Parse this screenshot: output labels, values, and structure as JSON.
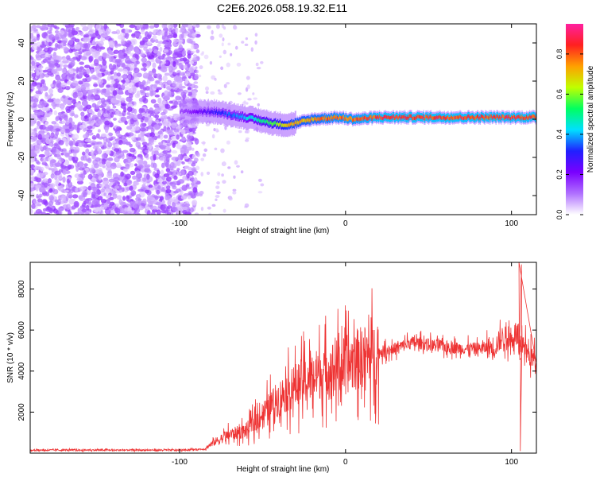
{
  "title": "C2E6.2026.058.19.32.E11",
  "chart_data": [
    {
      "type": "heatmap",
      "xlabel": "Height of straight line (km)",
      "ylabel": "Frequency (Hz)",
      "xlim": [
        -190,
        115
      ],
      "ylim": [
        -50,
        50
      ],
      "xticks": [
        -100,
        0,
        100
      ],
      "yticks": [
        -40,
        -20,
        0,
        20,
        40
      ],
      "colorbar": {
        "label": "Normalized spectral amplitude",
        "range": [
          0,
          0.95
        ],
        "ticks": [
          "0.0",
          "0.2",
          "0.4",
          "0.6",
          "0.8"
        ],
        "colormap": [
          "#ffffff",
          "#b070ff",
          "#7a00ff",
          "#2020ff",
          "#00e0ff",
          "#00ff60",
          "#c0ff00",
          "#ffa000",
          "#ff2020",
          "#ff20a0"
        ]
      },
      "ridge": {
        "noise_region_x": [
          -190,
          -95
        ],
        "ridge_x": [
          -100,
          -80,
          -60,
          -45,
          -35,
          -20,
          -5,
          5,
          20,
          50,
          80,
          105,
          115
        ],
        "ridge_freq": [
          4,
          4,
          1,
          -2,
          -3,
          0,
          1,
          0,
          1,
          1,
          1,
          1,
          1
        ],
        "ridge_amp": [
          0.15,
          0.3,
          0.45,
          0.6,
          0.75,
          0.8,
          0.85,
          0.85,
          0.9,
          0.9,
          0.9,
          0.9,
          0.9
        ]
      }
    },
    {
      "type": "line",
      "xlabel": "Height of straight line (km)",
      "ylabel": "SNR (10 * v/v)",
      "xlim": [
        -190,
        115
      ],
      "ylim": [
        0,
        9300
      ],
      "xticks": [
        -100,
        0,
        100
      ],
      "yticks": [
        2000,
        4000,
        6000,
        8000
      ],
      "color": "#ee3333",
      "envelope": {
        "x": [
          -190,
          -150,
          -100,
          -85,
          -80,
          -70,
          -60,
          -50,
          -40,
          -30,
          -20,
          -10,
          0,
          10,
          20,
          30,
          40,
          50,
          60,
          70,
          80,
          90,
          95,
          100,
          103,
          105,
          107,
          110,
          115
        ],
        "y": [
          150,
          150,
          150,
          200,
          500,
          900,
          1100,
          1900,
          2700,
          3300,
          3700,
          4100,
          4300,
          4700,
          4900,
          5100,
          5400,
          5300,
          5200,
          5100,
          5100,
          5200,
          5700,
          5500,
          6000,
          4500,
          5500,
          4800,
          4500
        ]
      },
      "spikes": [
        {
          "x": 104.5,
          "y": 9300
        },
        {
          "x": 106,
          "y": 9200
        },
        {
          "x": 105.3,
          "y": 100
        }
      ]
    }
  ]
}
